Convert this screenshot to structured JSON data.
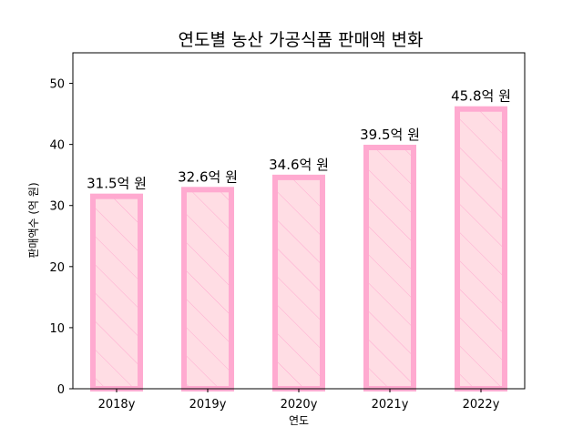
{
  "chart_data": {
    "type": "bar",
    "title": "연도별 농산 가공식품 판매액 변화",
    "xlabel": "연도",
    "ylabel": "판매액수 (억 원)",
    "categories": [
      "2018y",
      "2019y",
      "2020y",
      "2021y",
      "2022y"
    ],
    "values": [
      31.5,
      32.6,
      34.6,
      39.5,
      45.8
    ],
    "data_labels": [
      "31.5억 원",
      "32.6억 원",
      "34.6억 원",
      "39.5억 원",
      "45.8억 원"
    ],
    "ylim": [
      0,
      55
    ],
    "yticks": [
      0,
      10,
      20,
      30,
      40,
      50
    ],
    "grid": false,
    "bar_fill": "#ffdde4",
    "bar_edge": "#ffaad0",
    "hatch": "diagonal"
  }
}
